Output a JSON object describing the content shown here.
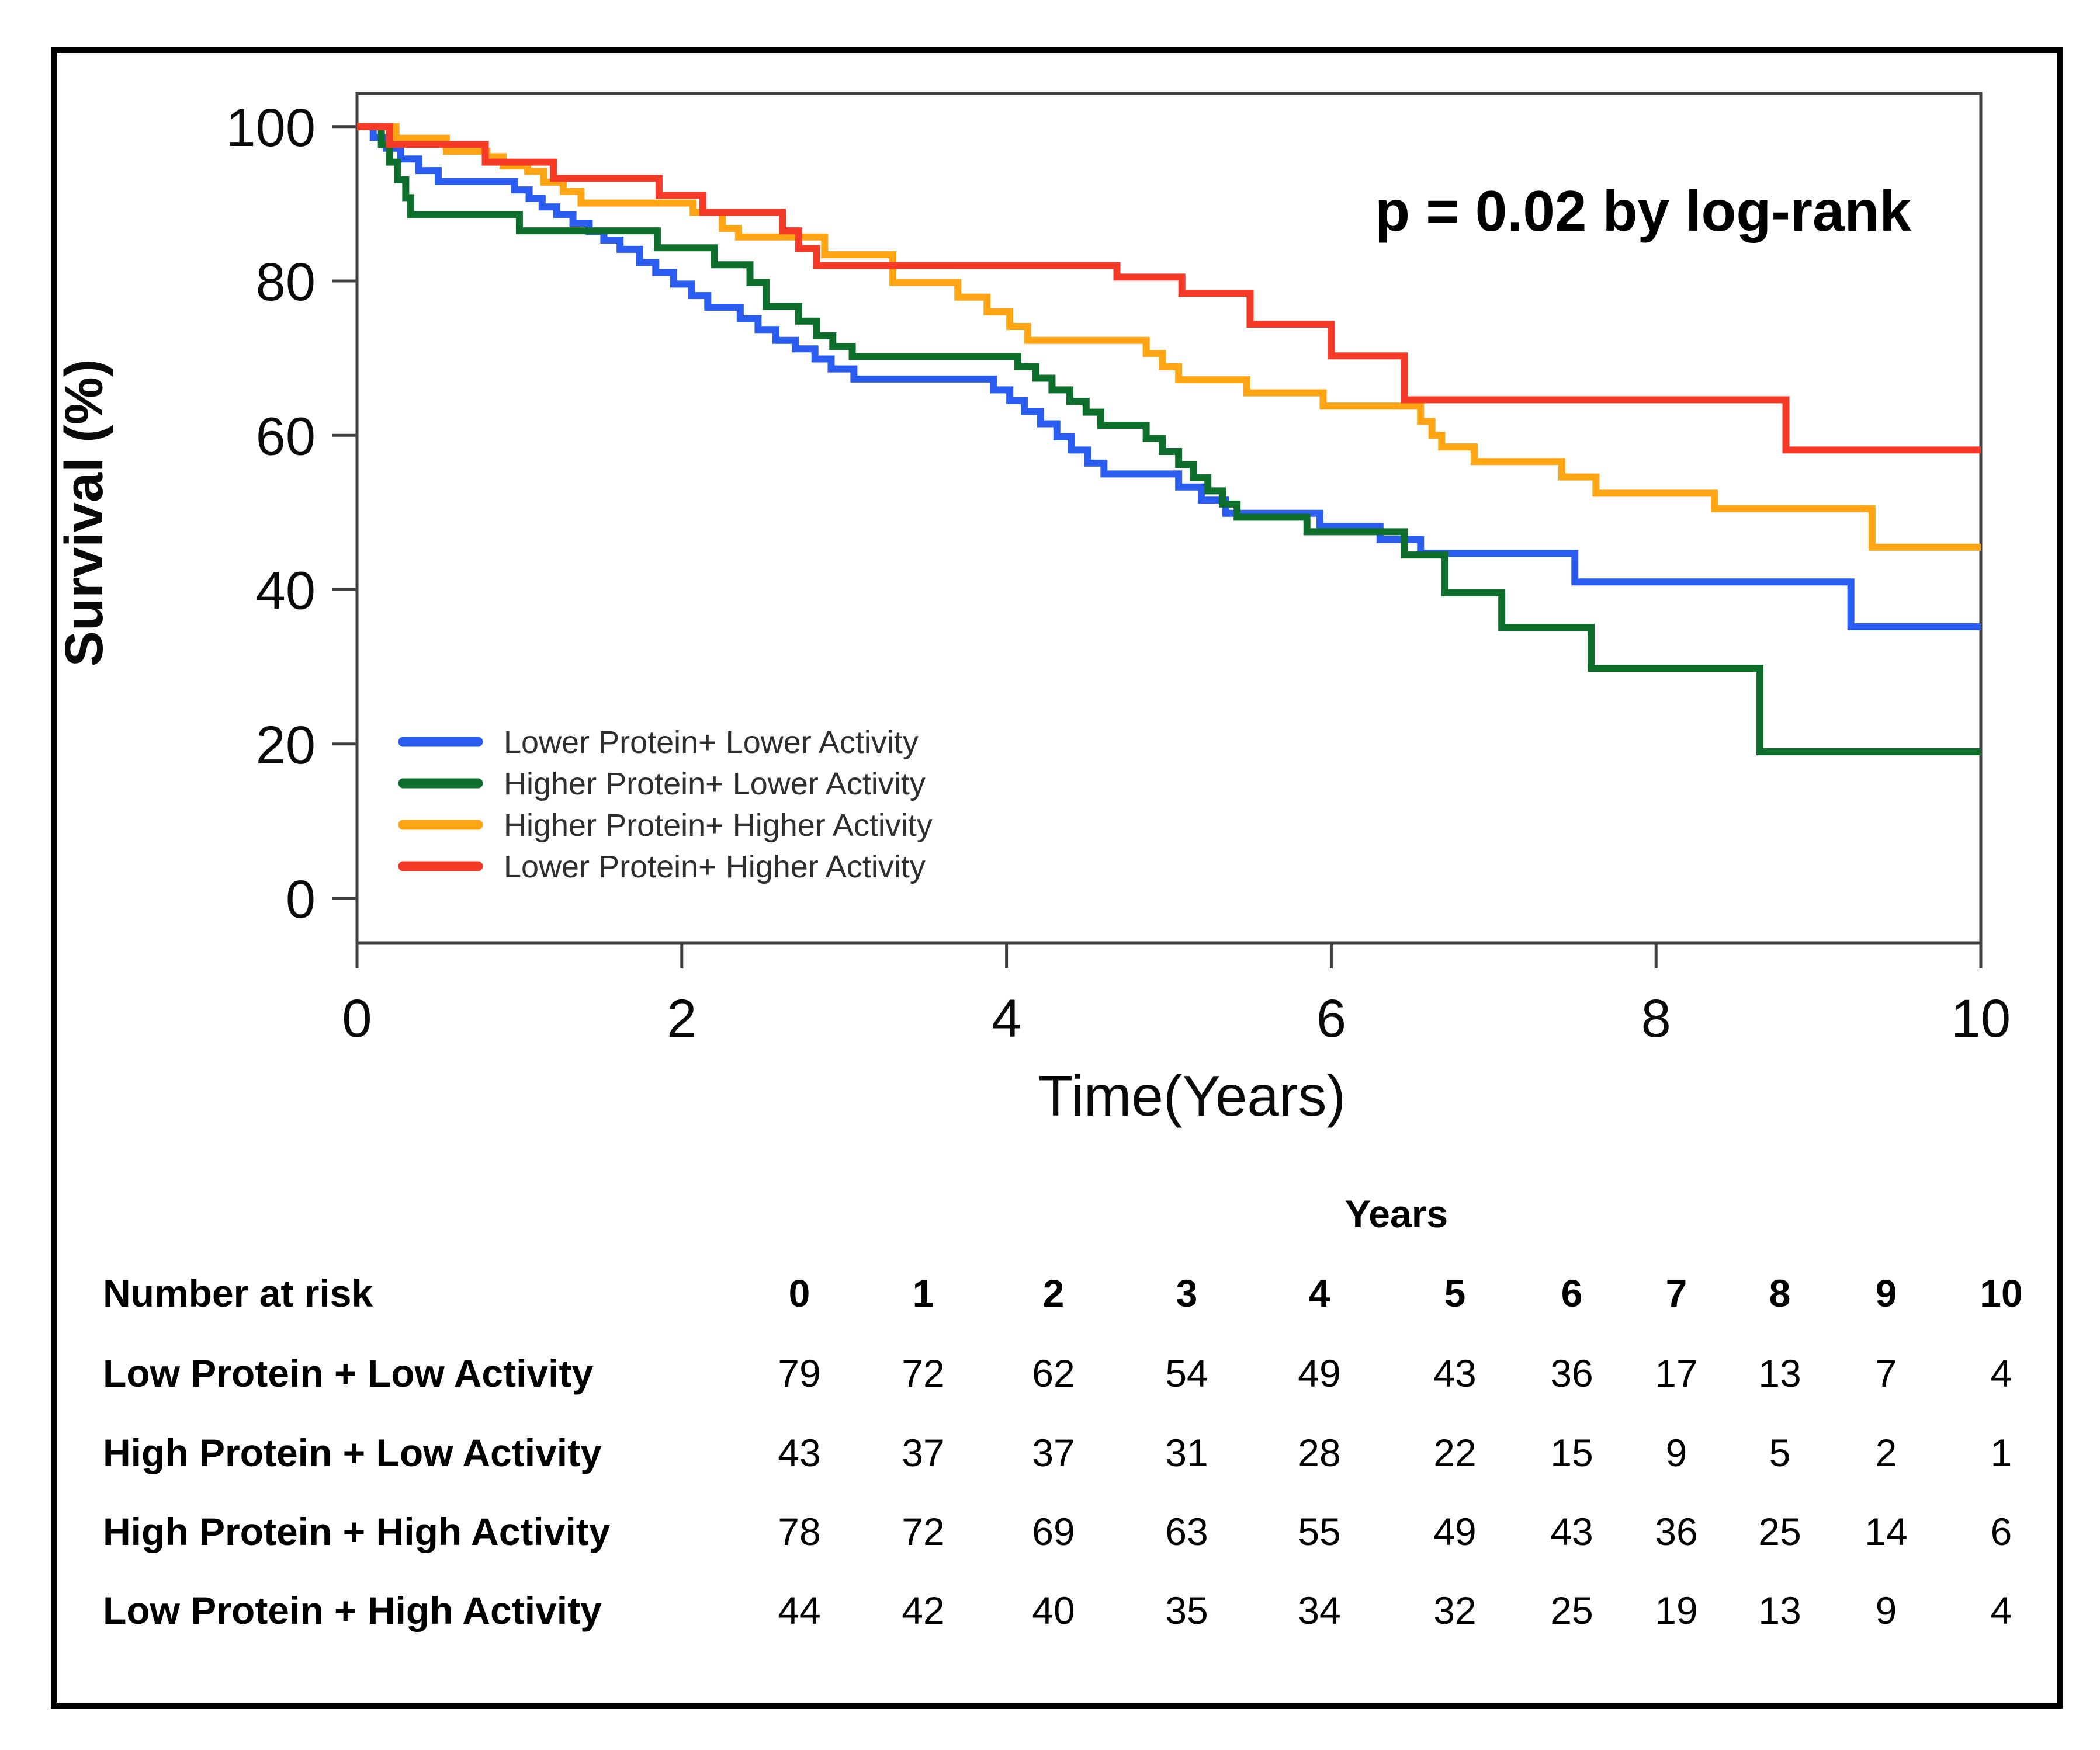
{
  "figure": {
    "annotation": "p = 0.02 by log-rank",
    "x_axis": {
      "label": "Time(Years)",
      "ticks": [
        "0",
        "2",
        "4",
        "6",
        "8",
        "10"
      ]
    },
    "y_axis": {
      "label": "Survival (%)",
      "ticks": [
        "100",
        "80",
        "60",
        "40",
        "20",
        "0"
      ]
    }
  },
  "chart_data": {
    "type": "line",
    "subtype": "kaplan_meier_step",
    "title": "",
    "xlabel": "Time(Years)",
    "ylabel": "Survival (%)",
    "xlim": [
      0,
      10
    ],
    "ylim": [
      0,
      100
    ],
    "x_ticks": [
      0,
      2,
      4,
      6,
      8,
      10
    ],
    "y_ticks": [
      100,
      80,
      60,
      40,
      20,
      0
    ],
    "grid": false,
    "legend_position": "inside-lower-left",
    "annotation": "p = 0.02 by log-rank",
    "series": [
      {
        "name": "Lower Protein+ Lower Activity",
        "color": "#2A5CEF",
        "steps": [
          [
            0,
            100
          ],
          [
            0.1,
            98.6
          ],
          [
            0.18,
            97.2
          ],
          [
            0.27,
            95.8
          ],
          [
            0.38,
            94.3
          ],
          [
            0.5,
            92.9
          ],
          [
            0.97,
            91.8
          ],
          [
            1.06,
            90.7
          ],
          [
            1.14,
            89.6
          ],
          [
            1.23,
            88.6
          ],
          [
            1.33,
            87.5
          ],
          [
            1.43,
            86.4
          ],
          [
            1.52,
            85.3
          ],
          [
            1.62,
            84.1
          ],
          [
            1.74,
            82.4
          ],
          [
            1.84,
            81.1
          ],
          [
            1.95,
            79.6
          ],
          [
            2.06,
            78.1
          ],
          [
            2.16,
            76.6
          ],
          [
            2.36,
            75.1
          ],
          [
            2.47,
            73.7
          ],
          [
            2.58,
            72.3
          ],
          [
            2.7,
            71.2
          ],
          [
            2.82,
            69.9
          ],
          [
            2.92,
            68.6
          ],
          [
            3.06,
            67.3
          ],
          [
            3.92,
            65.9
          ],
          [
            4.02,
            64.5
          ],
          [
            4.11,
            63.1
          ],
          [
            4.21,
            61.5
          ],
          [
            4.31,
            59.8
          ],
          [
            4.4,
            58.1
          ],
          [
            4.5,
            56.4
          ],
          [
            4.6,
            55.0
          ],
          [
            5.06,
            53.3
          ],
          [
            5.2,
            51.6
          ],
          [
            5.35,
            49.9
          ],
          [
            5.93,
            48.2
          ],
          [
            6.3,
            46.5
          ],
          [
            6.55,
            44.7
          ],
          [
            7.5,
            41.0
          ],
          [
            9.2,
            35.2
          ]
        ]
      },
      {
        "name": "Higher Protein+ Lower Activity",
        "color": "#0E6F2C",
        "steps": [
          [
            0,
            100
          ],
          [
            0.15,
            97.7
          ],
          [
            0.2,
            95.4
          ],
          [
            0.25,
            93.1
          ],
          [
            0.3,
            90.8
          ],
          [
            0.33,
            88.6
          ],
          [
            1.0,
            86.5
          ],
          [
            1.85,
            84.3
          ],
          [
            2.2,
            82.1
          ],
          [
            2.42,
            79.8
          ],
          [
            2.52,
            76.7
          ],
          [
            2.72,
            74.8
          ],
          [
            2.83,
            72.9
          ],
          [
            2.93,
            71.5
          ],
          [
            3.05,
            70.2
          ],
          [
            4.07,
            68.9
          ],
          [
            4.18,
            67.4
          ],
          [
            4.28,
            65.9
          ],
          [
            4.39,
            64.4
          ],
          [
            4.49,
            63.0
          ],
          [
            4.58,
            61.3
          ],
          [
            4.86,
            59.6
          ],
          [
            4.96,
            57.9
          ],
          [
            5.06,
            56.2
          ],
          [
            5.15,
            54.5
          ],
          [
            5.24,
            52.8
          ],
          [
            5.33,
            51.1
          ],
          [
            5.42,
            49.4
          ],
          [
            5.85,
            47.5
          ],
          [
            6.45,
            44.5
          ],
          [
            6.7,
            39.6
          ],
          [
            7.05,
            35.1
          ],
          [
            7.6,
            29.8
          ],
          [
            8.64,
            19.0
          ]
        ]
      },
      {
        "name": "Higher Protein+ Higher Activity",
        "color": "#FFA413",
        "steps": [
          [
            0,
            100
          ],
          [
            0.24,
            98.5
          ],
          [
            0.55,
            96.8
          ],
          [
            0.8,
            96.1
          ],
          [
            0.9,
            94.9
          ],
          [
            1.05,
            94.2
          ],
          [
            1.15,
            92.8
          ],
          [
            1.27,
            91.6
          ],
          [
            1.38,
            90.1
          ],
          [
            2.07,
            88.9
          ],
          [
            2.25,
            86.8
          ],
          [
            2.35,
            85.7
          ],
          [
            2.88,
            83.4
          ],
          [
            3.3,
            79.8
          ],
          [
            3.7,
            77.9
          ],
          [
            3.88,
            76.0
          ],
          [
            4.02,
            74.1
          ],
          [
            4.13,
            72.3
          ],
          [
            4.86,
            70.6
          ],
          [
            4.96,
            68.9
          ],
          [
            5.06,
            67.2
          ],
          [
            5.48,
            65.5
          ],
          [
            5.95,
            63.8
          ],
          [
            6.55,
            61.8
          ],
          [
            6.62,
            60.0
          ],
          [
            6.68,
            58.5
          ],
          [
            6.88,
            56.6
          ],
          [
            7.42,
            54.6
          ],
          [
            7.63,
            52.5
          ],
          [
            8.36,
            50.5
          ],
          [
            9.33,
            45.5
          ]
        ]
      },
      {
        "name": "Lower Protein+ Higher Activity",
        "color": "#F53B28",
        "steps": [
          [
            0,
            100
          ],
          [
            0.2,
            97.7
          ],
          [
            0.79,
            95.4
          ],
          [
            1.21,
            93.3
          ],
          [
            1.86,
            91.1
          ],
          [
            2.13,
            88.9
          ],
          [
            2.62,
            86.5
          ],
          [
            2.72,
            84.2
          ],
          [
            2.83,
            82.0
          ],
          [
            4.68,
            80.5
          ],
          [
            5.08,
            78.4
          ],
          [
            5.5,
            74.4
          ],
          [
            6.0,
            70.3
          ],
          [
            6.45,
            64.6
          ],
          [
            8.8,
            58.1
          ]
        ]
      }
    ]
  },
  "risk_table": {
    "axis_title": "Years",
    "header_label": "Number at risk",
    "years": [
      "0",
      "1",
      "2",
      "3",
      "4",
      "5",
      "6",
      "7",
      "8",
      "9",
      "10"
    ],
    "rows": [
      {
        "label": "Low Protein + Low Activity",
        "counts": [
          "79",
          "72",
          "62",
          "54",
          "49",
          "43",
          "36",
          "17",
          "13",
          "7",
          "4"
        ]
      },
      {
        "label": "High Protein + Low Activity",
        "counts": [
          "43",
          "37",
          "37",
          "31",
          "28",
          "22",
          "15",
          "9",
          "5",
          "2",
          "1"
        ]
      },
      {
        "label": "High Protein + High Activity",
        "counts": [
          "78",
          "72",
          "69",
          "63",
          "55",
          "49",
          "43",
          "36",
          "25",
          "14",
          "6"
        ]
      },
      {
        "label": "Low Protein + High Activity",
        "counts": [
          "44",
          "42",
          "40",
          "35",
          "34",
          "32",
          "25",
          "19",
          "13",
          "9",
          "4"
        ]
      }
    ]
  }
}
